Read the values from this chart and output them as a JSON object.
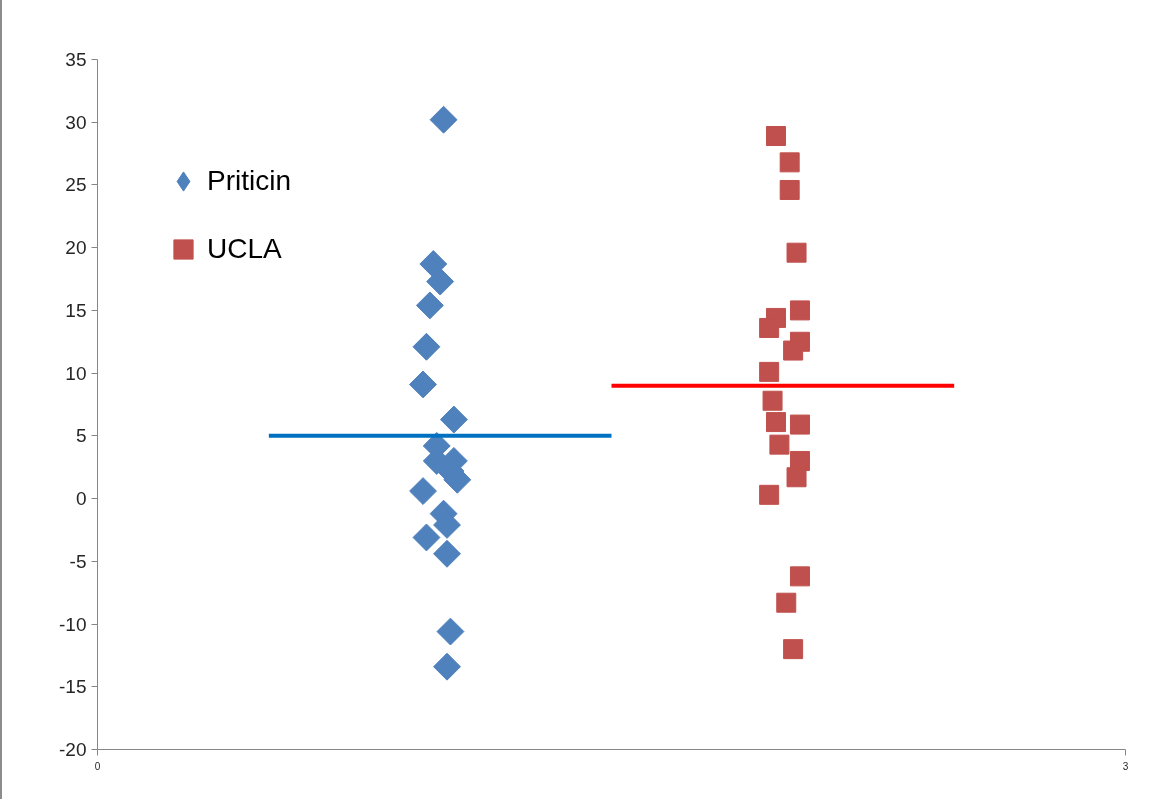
{
  "chart_data": {
    "type": "scatter",
    "xlim": [
      0,
      3
    ],
    "ylim": [
      -20,
      35
    ],
    "xticks": [
      0,
      3
    ],
    "yticks": [
      -20,
      -15,
      -10,
      -5,
      0,
      5,
      10,
      15,
      20,
      25,
      30,
      35
    ],
    "legend": "top left",
    "series": [
      {
        "name": "Priticin",
        "color": "#4f81bd",
        "marker": "diamond",
        "x": [
          1.01,
          0.98,
          1.0,
          0.97,
          0.96,
          0.95,
          1.04,
          0.99,
          0.99,
          1.04,
          1.03,
          1.05,
          0.95,
          1.01,
          1.02,
          0.96,
          1.02,
          1.03,
          1.02
        ],
        "values": [
          30.2,
          18.7,
          17.3,
          15.4,
          12.1,
          9.1,
          6.3,
          4.2,
          3.0,
          3.0,
          2.2,
          1.5,
          0.6,
          -1.2,
          -2.1,
          -3.1,
          -4.4,
          -10.6,
          -13.4
        ]
      },
      {
        "name": "UCLA",
        "color": "#c0504d",
        "marker": "square",
        "x": [
          1.98,
          2.02,
          2.02,
          2.04,
          2.05,
          1.98,
          1.96,
          2.05,
          2.03,
          1.96,
          1.97,
          1.98,
          2.05,
          1.99,
          2.05,
          2.04,
          1.96,
          2.05,
          2.01,
          2.03
        ],
        "values": [
          28.9,
          26.8,
          24.6,
          19.6,
          15.0,
          14.4,
          13.6,
          12.5,
          11.8,
          10.1,
          7.8,
          6.1,
          5.9,
          4.3,
          3.0,
          1.7,
          0.3,
          -6.2,
          -8.3,
          -12.0
        ]
      },
      {
        "type": "line",
        "color": "#0070c0",
        "x": [
          0.5,
          1.5
        ],
        "values": [
          5,
          5
        ]
      },
      {
        "type": "line",
        "color": "#ff0000",
        "x": [
          1.5,
          2.5
        ],
        "values": [
          9,
          9
        ]
      }
    ]
  }
}
